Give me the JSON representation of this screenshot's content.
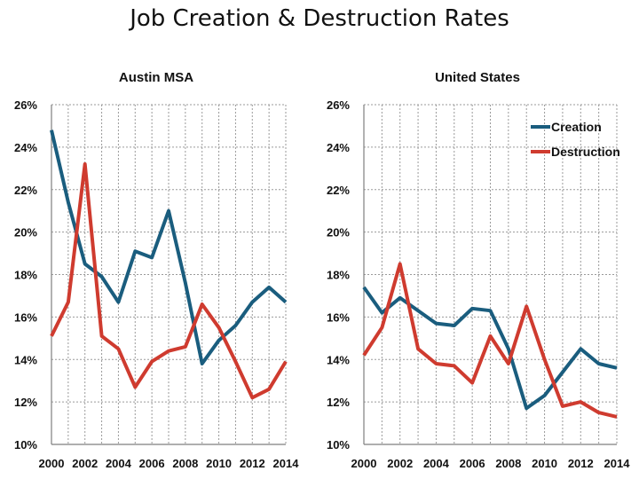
{
  "title": "Job Creation & Destruction Rates",
  "colors": {
    "creation": "#1a5d7e",
    "destruction": "#cf3b2f"
  },
  "chart_data": [
    {
      "type": "line",
      "title": "Austin MSA",
      "x": [
        2000,
        2001,
        2002,
        2003,
        2004,
        2005,
        2006,
        2007,
        2008,
        2009,
        2010,
        2011,
        2012,
        2013,
        2014
      ],
      "x_ticks": [
        "2000",
        "2002",
        "2004",
        "2006",
        "2008",
        "2010",
        "2012",
        "2014"
      ],
      "y_ticks": [
        "10%",
        "12%",
        "14%",
        "16%",
        "18%",
        "20%",
        "22%",
        "24%",
        "26%"
      ],
      "ylim": [
        10,
        26
      ],
      "y_unit": "%",
      "grid": true,
      "legend": false,
      "series": [
        {
          "name": "Creation",
          "values": [
            24.8,
            21.4,
            18.5,
            17.9,
            16.7,
            19.1,
            18.8,
            21.0,
            17.6,
            13.8,
            14.9,
            15.6,
            16.7,
            17.4,
            16.7
          ]
        },
        {
          "name": "Destruction",
          "values": [
            15.1,
            16.7,
            23.2,
            15.1,
            14.5,
            12.7,
            13.9,
            14.4,
            14.6,
            16.6,
            15.5,
            13.9,
            12.2,
            12.6,
            13.9
          ]
        }
      ]
    },
    {
      "type": "line",
      "title": "United States",
      "x": [
        2000,
        2001,
        2002,
        2003,
        2004,
        2005,
        2006,
        2007,
        2008,
        2009,
        2010,
        2011,
        2012,
        2013,
        2014
      ],
      "x_ticks": [
        "2000",
        "2002",
        "2004",
        "2006",
        "2008",
        "2010",
        "2012",
        "2014"
      ],
      "y_ticks": [
        "10%",
        "12%",
        "14%",
        "16%",
        "18%",
        "20%",
        "22%",
        "24%",
        "26%"
      ],
      "ylim": [
        10,
        26
      ],
      "y_unit": "%",
      "grid": true,
      "legend": "top-right",
      "series": [
        {
          "name": "Creation",
          "values": [
            17.4,
            16.2,
            16.9,
            16.3,
            15.7,
            15.6,
            16.4,
            16.3,
            14.5,
            11.7,
            12.3,
            13.4,
            14.5,
            13.8,
            13.6
          ]
        },
        {
          "name": "Destruction",
          "values": [
            14.2,
            15.5,
            18.5,
            14.5,
            13.8,
            13.7,
            12.9,
            15.1,
            13.8,
            16.5,
            14.0,
            11.8,
            12.0,
            11.5,
            11.3
          ]
        }
      ]
    }
  ]
}
